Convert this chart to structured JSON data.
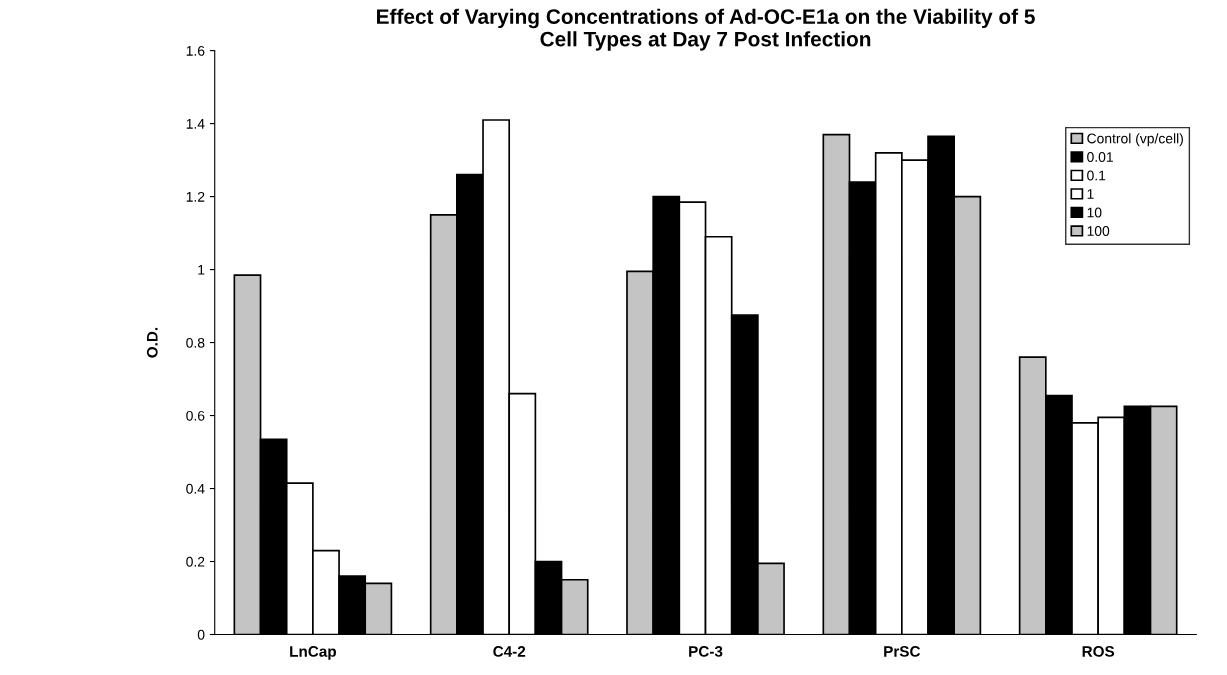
{
  "chart_data": {
    "type": "bar",
    "title": "Effect of Varying Concentrations of Ad-OC-E1a on the Viability of 5\nCell Types at Day 7 Post Infection",
    "ylabel": "O.D.",
    "categories": [
      "LnCap",
      "C4-2",
      "PC-3",
      "PrSC",
      "ROS"
    ],
    "series": [
      {
        "name": "Control (vp/cell)",
        "color": "#c4c4c4",
        "values": [
          0.985,
          1.15,
          0.995,
          1.37,
          0.76
        ]
      },
      {
        "name": "0.01",
        "color": "#000000",
        "values": [
          0.535,
          1.26,
          1.2,
          1.24,
          0.655
        ]
      },
      {
        "name": "0.1",
        "color": "#ffffff",
        "values": [
          0.415,
          1.41,
          1.185,
          1.32,
          0.58
        ]
      },
      {
        "name": "1",
        "color": "#ffffff",
        "values": [
          0.23,
          0.66,
          1.09,
          1.3,
          0.595
        ]
      },
      {
        "name": "10",
        "color": "#000000",
        "values": [
          0.16,
          0.2,
          0.875,
          1.365,
          0.625
        ]
      },
      {
        "name": "100",
        "color": "#c4c4c4",
        "values": [
          0.14,
          0.15,
          0.195,
          1.2,
          0.625
        ]
      }
    ],
    "ylim": [
      0,
      1.6
    ],
    "yticks": [
      0,
      0.2,
      0.4,
      0.6,
      0.8,
      1,
      1.2,
      1.4,
      1.6
    ],
    "grid": false,
    "legend": "top right"
  }
}
